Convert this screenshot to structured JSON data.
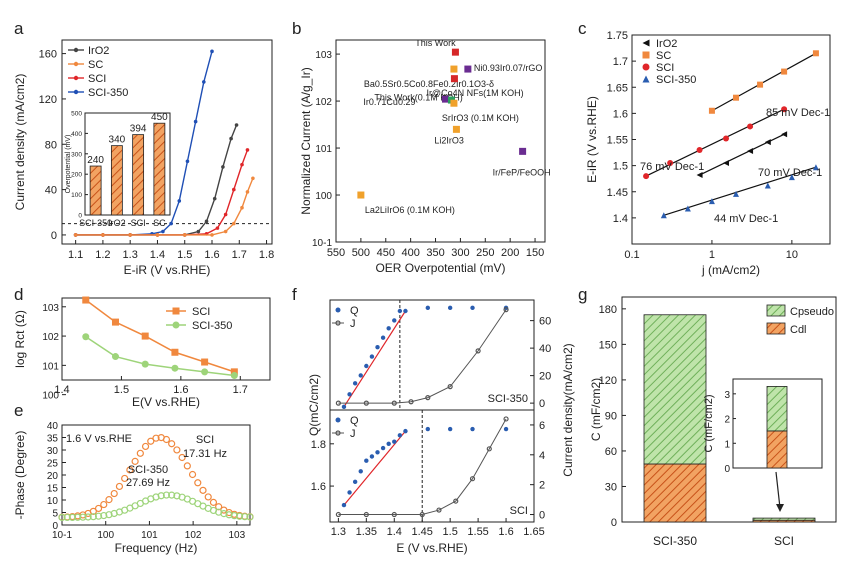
{
  "chart_data": [
    {
      "panel": "a",
      "type": "line",
      "xlabel": "E-iR (V vs.RHE)",
      "ylabel": "Current density (mA/cm2)",
      "xlim": [
        1.05,
        1.82
      ],
      "ylim": [
        -8,
        172
      ],
      "xticks": [
        "1.1",
        "1.2",
        "1.3",
        "1.4",
        "1.5",
        "1.6",
        "1.7",
        "1.8"
      ],
      "yticks": [
        "0",
        "40",
        "80",
        "120",
        "160"
      ],
      "legend": [
        "IrO2",
        "SC",
        "SCI",
        "SCI-350"
      ],
      "series": [
        {
          "name": "SCI-350",
          "color": "#1f4fb5",
          "x": [
            1.1,
            1.2,
            1.3,
            1.38,
            1.42,
            1.45,
            1.48,
            1.51,
            1.54,
            1.57,
            1.6
          ],
          "y": [
            0,
            0,
            0,
            1,
            3,
            10,
            30,
            65,
            100,
            135,
            162
          ]
        },
        {
          "name": "IrO2",
          "color": "#444444",
          "x": [
            1.1,
            1.2,
            1.3,
            1.4,
            1.5,
            1.55,
            1.58,
            1.61,
            1.64,
            1.67,
            1.69
          ],
          "y": [
            0,
            0,
            0,
            0,
            0,
            3,
            12,
            32,
            60,
            85,
            97
          ]
        },
        {
          "name": "SCI",
          "color": "#e0262a",
          "x": [
            1.1,
            1.2,
            1.3,
            1.4,
            1.5,
            1.58,
            1.62,
            1.65,
            1.68,
            1.71,
            1.73
          ],
          "y": [
            0,
            0,
            0,
            0,
            0,
            1,
            6,
            18,
            40,
            62,
            75
          ]
        },
        {
          "name": "SC",
          "color": "#f0883e",
          "x": [
            1.1,
            1.2,
            1.3,
            1.4,
            1.5,
            1.6,
            1.65,
            1.68,
            1.71,
            1.73,
            1.75
          ],
          "y": [
            0,
            0,
            0,
            0,
            0,
            0,
            3,
            10,
            24,
            38,
            50
          ]
        }
      ],
      "dashed_line_y": 10,
      "inset": {
        "ylabel": "Overpotential (mV)",
        "ylim": [
          0,
          500
        ],
        "yticks": [
          "0",
          "100",
          "200",
          "300",
          "400",
          "500"
        ],
        "categories": [
          "SCI-350",
          "IrO2",
          "SCI",
          "SC"
        ],
        "values": [
          240,
          340,
          394,
          450
        ],
        "value_labels": [
          "240",
          "340",
          "394",
          "450"
        ]
      }
    },
    {
      "panel": "b",
      "type": "scatter",
      "xlabel": "OER Overpotential (mV)",
      "ylabel": "Normalized Current (A/g_Ir)",
      "xlim": [
        550,
        130
      ],
      "ylim_log": [
        -1,
        3.3
      ],
      "xticks": [
        "550",
        "500",
        "450",
        "400",
        "350",
        "300",
        "250",
        "200",
        "150"
      ],
      "yticks": [
        "10-1",
        "100",
        "101",
        "102",
        "103"
      ],
      "points": [
        {
          "x": 500,
          "y": 1.0,
          "color": "#f0a12b",
          "label": "La2LiIrO6 (0.1M KOH)"
        },
        {
          "x": 310,
          "y": 1100,
          "color": "#d62728",
          "label": "This Work"
        },
        {
          "x": 313,
          "y": 480,
          "color": "#f0a12b",
          "label": "Ba0.5Sr0.5Co0.8Fe0.2Ir0.1O3-δ"
        },
        {
          "x": 312,
          "y": 300,
          "color": "#d62728",
          "label": "This Work(0.1M KOH)"
        },
        {
          "x": 285,
          "y": 480,
          "color": "#6a2c91",
          "label": "Ni0.93Ir0.07/rGO"
        },
        {
          "x": 330,
          "y": 110,
          "color": "#6a2c91",
          "label": "Ir0.71Cu0.29"
        },
        {
          "x": 318,
          "y": 105,
          "color": "#2ca25f",
          "label": "Ir@Co4N NFs(1M KOH)"
        },
        {
          "x": 313,
          "y": 90,
          "color": "#f0a12b",
          "label": "SrIrO3 (0.1M KOH)"
        },
        {
          "x": 308,
          "y": 25,
          "color": "#f0a12b",
          "label": "Li2IrO3"
        },
        {
          "x": 175,
          "y": 8.5,
          "color": "#6a2c91",
          "label": "Ir/FeP/FeOOH"
        }
      ]
    },
    {
      "panel": "c",
      "type": "scatter",
      "xlabel": "j (mA/cm2)",
      "ylabel": "E-iR (V vs.RHE)",
      "xlim_log": [
        0.1,
        30
      ],
      "ylim": [
        1.35,
        1.75
      ],
      "xticks": [
        "0.1",
        "1",
        "10"
      ],
      "yticks": [
        "1.4",
        "1.45",
        "1.5",
        "1.55",
        "1.6",
        "1.65",
        "1.7",
        "1.75"
      ],
      "legend": [
        "IrO2",
        "SC",
        "SCI",
        "SCI-350"
      ],
      "series": [
        {
          "name": "SC",
          "color": "#f0883e",
          "marker": "square",
          "x": [
            1,
            2,
            4,
            8,
            20
          ],
          "y": [
            1.605,
            1.63,
            1.655,
            1.68,
            1.715
          ]
        },
        {
          "name": "SCI",
          "color": "#e0262a",
          "marker": "circle",
          "x": [
            0.15,
            0.3,
            0.7,
            1.5,
            3,
            8
          ],
          "y": [
            1.48,
            1.505,
            1.53,
            1.552,
            1.575,
            1.608
          ]
        },
        {
          "name": "IrO2",
          "color": "#111111",
          "marker": "triangle-left",
          "x": [
            0.7,
            1.5,
            3,
            5,
            8
          ],
          "y": [
            1.482,
            1.505,
            1.528,
            1.545,
            1.56
          ]
        },
        {
          "name": "SCI-350",
          "color": "#2a5db0",
          "marker": "triangle-up",
          "x": [
            0.25,
            0.5,
            1,
            2,
            5,
            10,
            20
          ],
          "y": [
            1.405,
            1.418,
            1.432,
            1.446,
            1.462,
            1.478,
            1.497
          ]
        }
      ],
      "annotations": [
        "85 mV Dec-1",
        "76 mV Dec-1",
        "70 mV Dec-1",
        "44 mV Dec-1"
      ]
    },
    {
      "panel": "d",
      "type": "line",
      "xlabel": "E(V vs.RHE)",
      "ylabel": "log Rct (Ω)",
      "xlim": [
        1.4,
        1.75
      ],
      "ylim_log": [
        0.5,
        3.3
      ],
      "xticks": [
        "1.4",
        "1.5",
        "1.6",
        "1.7"
      ],
      "yticks": [
        "100",
        "101",
        "102",
        "103"
      ],
      "series": [
        {
          "name": "SCI",
          "color": "#f0883e",
          "x": [
            1.44,
            1.49,
            1.54,
            1.59,
            1.64,
            1.69
          ],
          "y": [
            1700,
            300,
            100,
            28,
            13,
            6
          ]
        },
        {
          "name": "SCI-350",
          "color": "#9ed47a",
          "x": [
            1.44,
            1.49,
            1.54,
            1.59,
            1.64,
            1.69
          ],
          "y": [
            95,
            20,
            11,
            8,
            6,
            4.5
          ]
        }
      ]
    },
    {
      "panel": "e",
      "type": "scatter",
      "title": "1.6 V vs.RHE",
      "xlabel": "Frequency (Hz)",
      "ylabel": "-Phase (Degree)",
      "xlim_log": [
        0.1,
        2000
      ],
      "ylim": [
        0,
        40
      ],
      "xticks": [
        "10-1",
        "100",
        "101",
        "102",
        "103"
      ],
      "yticks": [
        "0",
        "5",
        "10",
        "15",
        "20",
        "25",
        "30",
        "35",
        "40"
      ],
      "series": [
        {
          "name": "SCI",
          "color": "#f0883e",
          "peak_hz": 17.31,
          "peak_phase": 35
        },
        {
          "name": "SCI-350",
          "color": "#9ed47a",
          "peak_hz": 27.69,
          "peak_phase": 12
        }
      ],
      "annotations": [
        "SCI",
        "17.31 Hz",
        "SCI-350",
        "27.69 Hz"
      ]
    },
    {
      "panel": "f",
      "type": "scatter",
      "xlabel": "E (V vs.RHE)",
      "ylabel_left": "Q(mC/cm2)",
      "ylabel_right": "Current density(mA/cm2)",
      "xlim": [
        1.285,
        1.65
      ],
      "xticks": [
        "1.3",
        "1.35",
        "1.4",
        "1.45",
        "1.5",
        "1.55",
        "1.6",
        "1.65"
      ],
      "top": {
        "label": "SCI-350",
        "vline_x": 1.41,
        "right_yticks": [
          "0",
          "20",
          "40",
          "60"
        ],
        "right_ylim": [
          -5,
          75
        ],
        "Q_x": [
          1.31,
          1.32,
          1.33,
          1.34,
          1.35,
          1.36,
          1.37,
          1.38,
          1.39,
          1.4,
          1.41,
          1.42,
          1.46,
          1.5,
          1.54,
          1.6
        ],
        "Q_y": [
          2,
          10,
          17,
          22,
          28,
          34,
          40,
          46,
          52,
          57,
          63,
          63,
          65,
          65,
          65,
          65
        ],
        "J_x": [
          1.3,
          1.35,
          1.4,
          1.43,
          1.46,
          1.5,
          1.55,
          1.6
        ],
        "J_y": [
          0,
          0,
          0,
          1,
          4,
          12,
          38,
          68
        ]
      },
      "bottom": {
        "label": "SCI",
        "vline_x": 1.45,
        "left_yticks": [
          "1.6",
          "1.8"
        ],
        "right_yticks": [
          "0",
          "2",
          "4",
          "6"
        ],
        "right_ylim": [
          -0.5,
          7
        ],
        "Q_x": [
          1.31,
          1.32,
          1.33,
          1.34,
          1.35,
          1.36,
          1.37,
          1.38,
          1.39,
          1.4,
          1.41,
          1.42,
          1.46,
          1.5,
          1.54,
          1.6
        ],
        "Q_y": [
          1.51,
          1.57,
          1.62,
          1.67,
          1.72,
          1.74,
          1.76,
          1.78,
          1.8,
          1.81,
          1.84,
          1.86,
          1.87,
          1.87,
          1.87,
          1.87
        ],
        "J_x": [
          1.3,
          1.35,
          1.4,
          1.45,
          1.48,
          1.51,
          1.54,
          1.57,
          1.6
        ],
        "J_y": [
          0,
          0,
          0,
          0,
          0.3,
          0.9,
          2.4,
          4.4,
          6.4
        ]
      },
      "legend": [
        "Q",
        "J"
      ]
    },
    {
      "panel": "g",
      "type": "bar",
      "ylabel": "C (mF/cm2)",
      "ylim": [
        0,
        190
      ],
      "categories": [
        "SCI-350",
        "SCI"
      ],
      "yticks": [
        "0",
        "30",
        "60",
        "90",
        "120",
        "150",
        "180"
      ],
      "series": [
        {
          "name": "Cdl",
          "color": "#f0883e",
          "values": [
            49,
            1.5
          ]
        },
        {
          "name": "Cpseudo",
          "color": "#9ed47a",
          "values": [
            126,
            1.8
          ]
        }
      ],
      "legend": [
        "Cpseudo",
        "Cdl"
      ],
      "inset": {
        "ylabel": "C (mF/cm2)",
        "ylim": [
          0,
          3.6
        ],
        "yticks": [
          "0",
          "1",
          "2",
          "3"
        ],
        "cdl": 1.5,
        "cpseudo": 1.8
      }
    }
  ],
  "panel_labels": [
    "a",
    "b",
    "c",
    "d",
    "e",
    "f",
    "g"
  ]
}
